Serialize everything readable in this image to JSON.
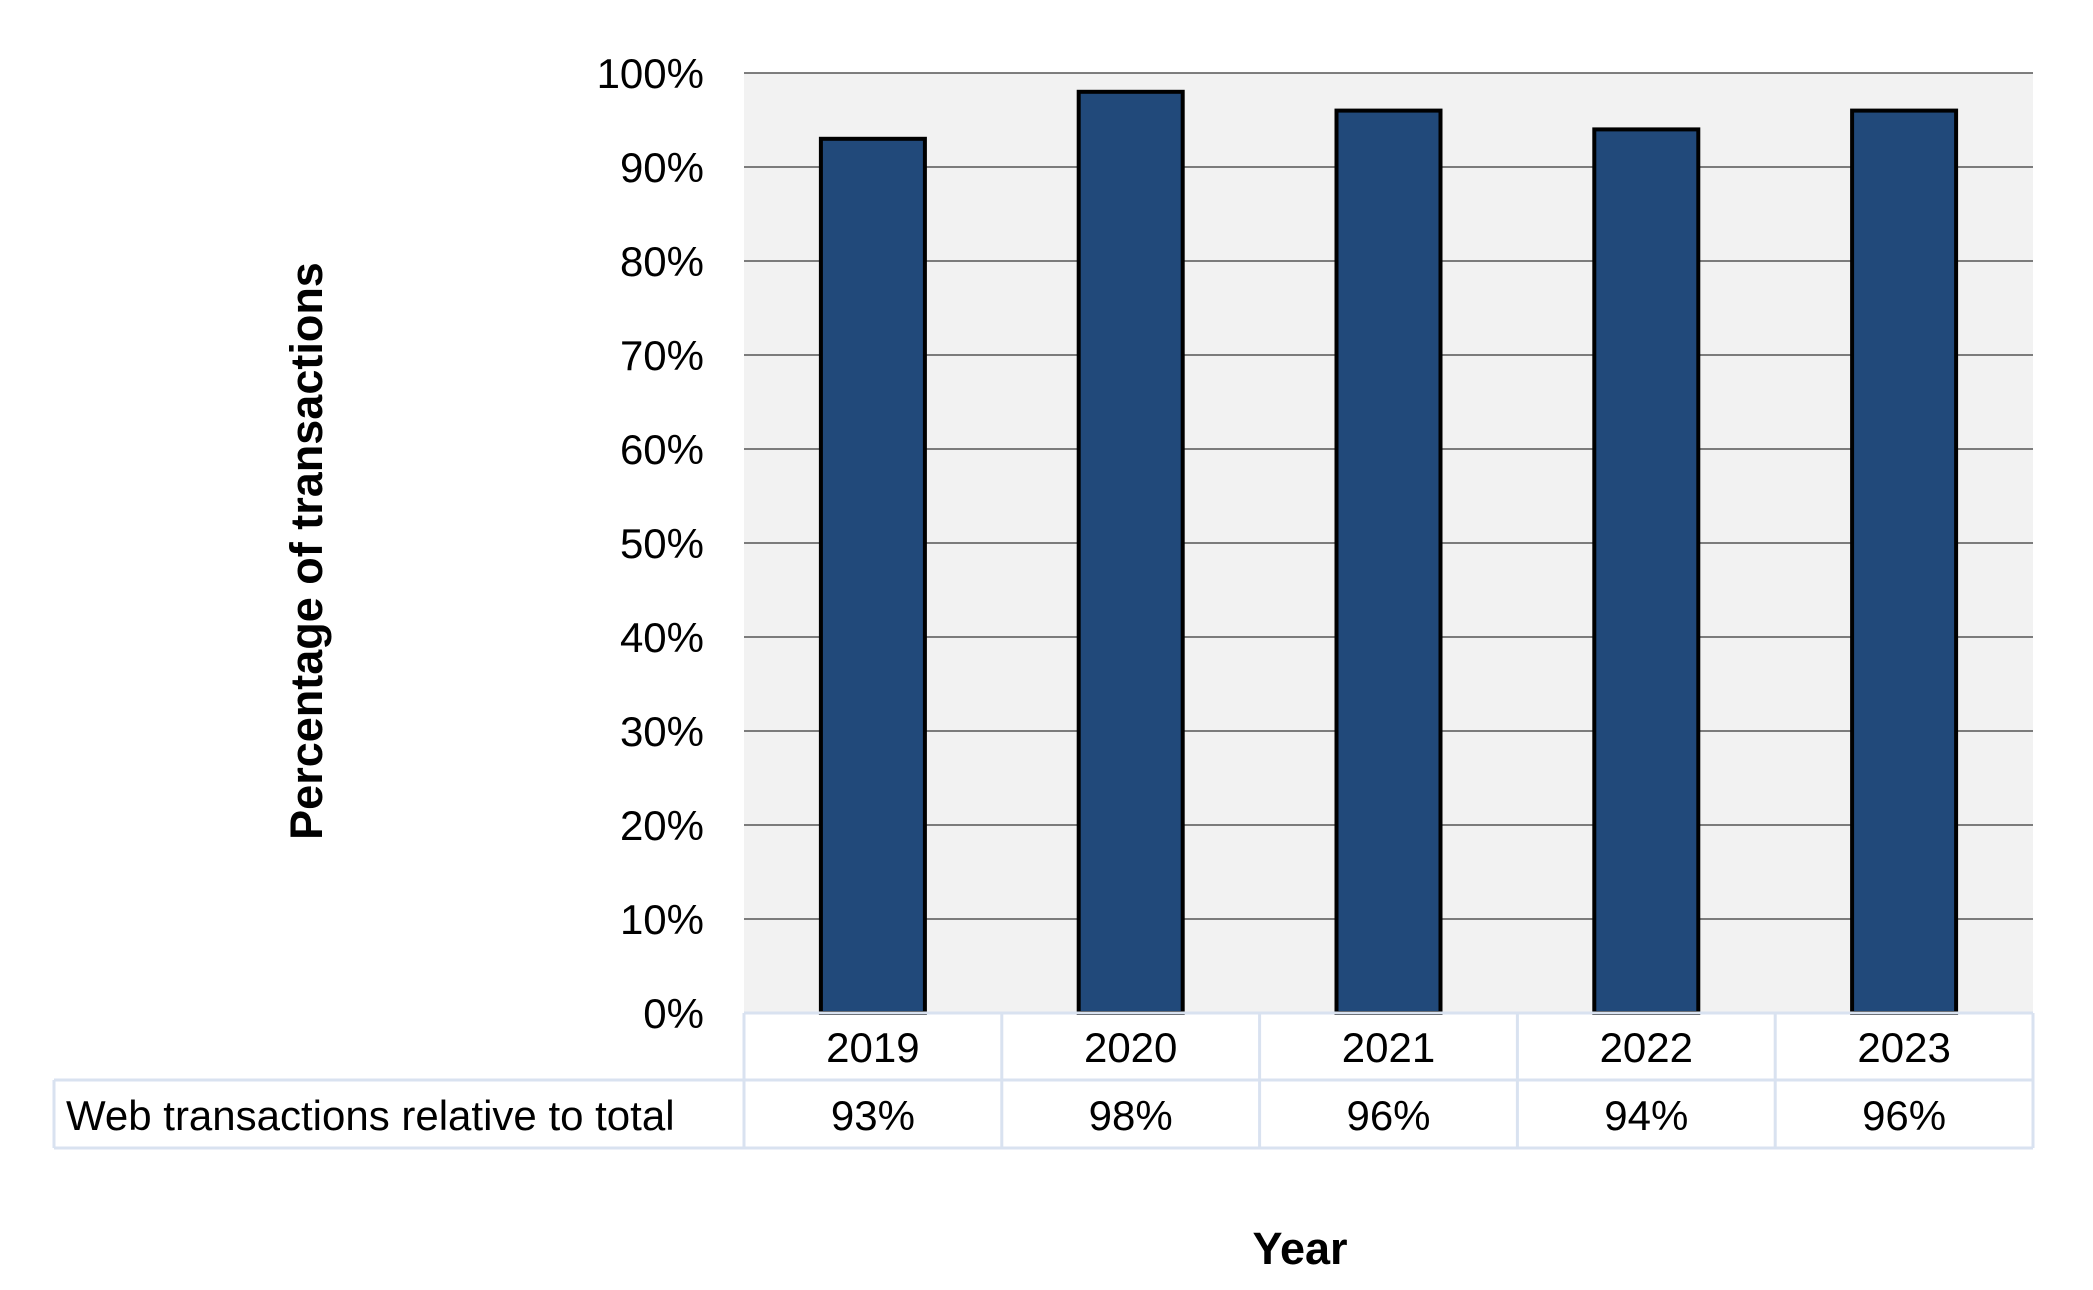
{
  "chart_data": {
    "type": "bar",
    "title": "",
    "xlabel": "Year",
    "ylabel": "Percentage of transactions",
    "categories": [
      "2019",
      "2020",
      "2021",
      "2022",
      "2023"
    ],
    "series": [
      {
        "name": "Web transactions relative to total",
        "values": [
          93,
          98,
          96,
          94,
          96
        ]
      }
    ],
    "ylim": [
      0,
      100
    ],
    "y_ticks": [
      "0%",
      "10%",
      "20%",
      "30%",
      "40%",
      "50%",
      "60%",
      "70%",
      "80%",
      "90%",
      "100%"
    ],
    "data_table": {
      "row_label": "Web transactions relative to total",
      "values": [
        "93%",
        "98%",
        "96%",
        "94%",
        "96%"
      ]
    },
    "grid": true,
    "legend": "none",
    "colors": {
      "bar_fill": "#21497a",
      "bar_stroke": "#000000",
      "plot_background": "#f2f2f2",
      "gridline": "#555555",
      "table_border": "#d9e2f0"
    }
  }
}
